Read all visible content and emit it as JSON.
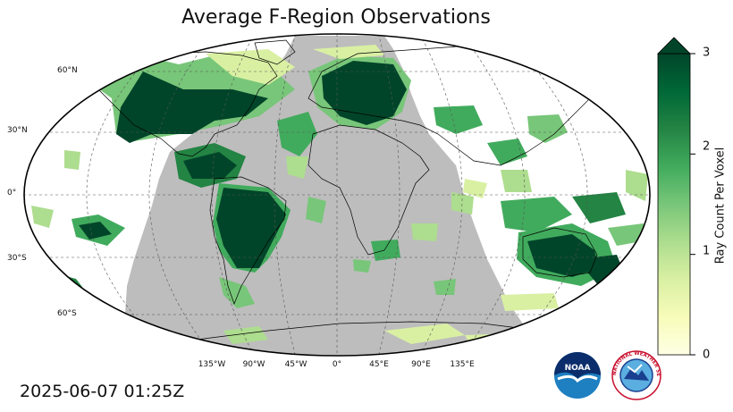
{
  "title": "Average F-Region Observations",
  "timestamp": "2025-06-07 01:25Z",
  "map": {
    "projection": "Robinson",
    "night_shading_color": "#bdbdbd",
    "latitude_labels": [
      "60°N",
      "30°N",
      "0°",
      "30°S",
      "60°S"
    ],
    "longitude_labels": [
      "135°W",
      "90°W",
      "45°W",
      "0°",
      "45°E",
      "90°E",
      "135°E"
    ]
  },
  "colorbar": {
    "label": "Ray Count Per Voxel",
    "ticks": [
      "0",
      "1",
      "2",
      "3"
    ],
    "range": [
      0,
      3
    ],
    "extend": "max",
    "colors": [
      "#ffffe5",
      "#f7fcb9",
      "#d9f0a3",
      "#addd8e",
      "#78c679",
      "#41ab5d",
      "#238443",
      "#006837",
      "#004529"
    ]
  },
  "logos": {
    "noaa_text": "NOAA",
    "nws_text": "NATIONAL WEATHER SERVICE"
  }
}
